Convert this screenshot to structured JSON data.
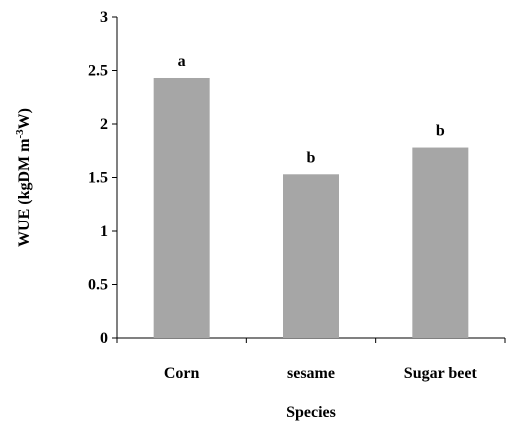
{
  "chart_data": {
    "type": "bar",
    "categories": [
      "Corn",
      "sesame",
      "Sugar beet"
    ],
    "values": [
      2.43,
      1.53,
      1.78
    ],
    "annotations": [
      "a",
      "b",
      "b"
    ],
    "xlabel": "Species",
    "ylabel_main": "WUE (kgDM m",
    "ylabel_sup": "-3",
    "ylabel_end": "W)",
    "ylim": [
      0,
      3
    ],
    "yticks": [
      0,
      0.5,
      1,
      1.5,
      2,
      2.5,
      3
    ],
    "ytick_labels": [
      "0",
      "0.5",
      "1",
      "1.5",
      "2",
      "2.5",
      "3"
    ],
    "grid": false,
    "bar_color": "#a6a6a6"
  }
}
